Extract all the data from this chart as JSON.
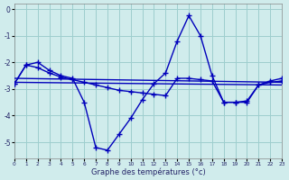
{
  "title": "Graphe des températures (°c)",
  "background_color": "#d0ecec",
  "grid_color": "#9ecece",
  "line_color": "#0000bb",
  "xlim": [
    0,
    23
  ],
  "ylim": [
    -5.6,
    0.2
  ],
  "xticks": [
    0,
    1,
    2,
    3,
    4,
    5,
    6,
    7,
    8,
    9,
    10,
    11,
    12,
    13,
    14,
    15,
    16,
    17,
    18,
    19,
    20,
    21,
    22,
    23
  ],
  "yticks": [
    0,
    -1,
    -2,
    -3,
    -4,
    -5
  ],
  "series": [
    {
      "x": [
        0,
        1,
        2,
        3,
        4,
        5,
        6,
        7,
        8,
        9,
        10,
        11,
        12,
        13,
        14,
        15,
        16,
        17,
        18,
        19,
        20,
        21,
        22,
        23
      ],
      "y": [
        -2.8,
        -2.1,
        -2.0,
        -2.3,
        -2.5,
        -2.6,
        -3.5,
        -5.2,
        -5.3,
        -4.7,
        -4.1,
        -3.4,
        -2.8,
        -2.4,
        -1.2,
        -0.25,
        -1.0,
        -2.5,
        -3.5,
        -3.5,
        -3.45,
        -2.85,
        -2.7,
        -2.6
      ],
      "marker": "+",
      "markersize": 4,
      "linewidth": 1.0,
      "linestyle": "-"
    },
    {
      "x": [
        0,
        23
      ],
      "y": [
        -2.6,
        -2.75
      ],
      "marker": null,
      "markersize": 0,
      "linewidth": 1.0,
      "linestyle": "-"
    },
    {
      "x": [
        0,
        23
      ],
      "y": [
        -2.75,
        -2.85
      ],
      "marker": null,
      "markersize": 0,
      "linewidth": 1.0,
      "linestyle": "-"
    },
    {
      "x": [
        0,
        1,
        2,
        3,
        4,
        5,
        6,
        7,
        8,
        9,
        10,
        11,
        12,
        13,
        14,
        15,
        16,
        17,
        18,
        19,
        20,
        21,
        22,
        23
      ],
      "y": [
        -2.8,
        -2.1,
        -2.2,
        -2.4,
        -2.55,
        -2.65,
        -2.75,
        -2.85,
        -2.95,
        -3.05,
        -3.1,
        -3.15,
        -3.2,
        -3.25,
        -2.6,
        -2.6,
        -2.65,
        -2.7,
        -3.5,
        -3.5,
        -3.5,
        -2.85,
        -2.75,
        -2.7
      ],
      "marker": "+",
      "markersize": 4,
      "linewidth": 1.0,
      "linestyle": "-"
    }
  ]
}
